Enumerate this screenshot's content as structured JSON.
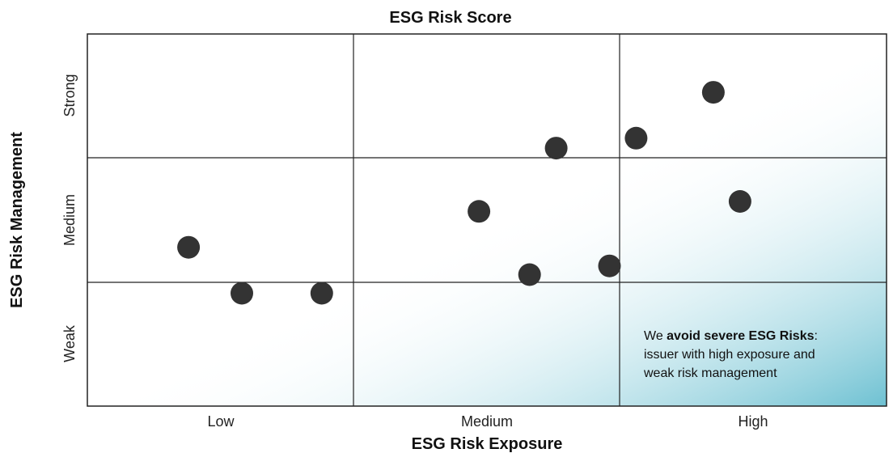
{
  "chart_data": {
    "type": "scatter",
    "title": "ESG Risk Score",
    "xlabel": "ESG Risk Exposure",
    "ylabel": "ESG Risk Management",
    "x_categories": [
      "Low",
      "Medium",
      "High"
    ],
    "y_categories": [
      "Weak",
      "Medium",
      "Strong"
    ],
    "xlim": [
      0,
      3
    ],
    "ylim": [
      0,
      3
    ],
    "grid": true,
    "gradient_color": "#6ec1d2",
    "point_color": "#333333",
    "points": [
      {
        "x": 0.38,
        "y": 1.28
      },
      {
        "x": 0.58,
        "y": 0.91
      },
      {
        "x": 0.88,
        "y": 0.91
      },
      {
        "x": 1.47,
        "y": 1.57
      },
      {
        "x": 1.66,
        "y": 1.06
      },
      {
        "x": 1.76,
        "y": 2.08
      },
      {
        "x": 1.96,
        "y": 1.13
      },
      {
        "x": 2.06,
        "y": 2.16
      },
      {
        "x": 2.35,
        "y": 2.53
      },
      {
        "x": 2.45,
        "y": 1.65
      }
    ],
    "annotation": {
      "line1_prefix": "We ",
      "line1_bold": "avoid severe ESG Risks",
      "line1_suffix": ":",
      "line2": "issuer with high exposure and",
      "line3": "weak risk management"
    }
  }
}
